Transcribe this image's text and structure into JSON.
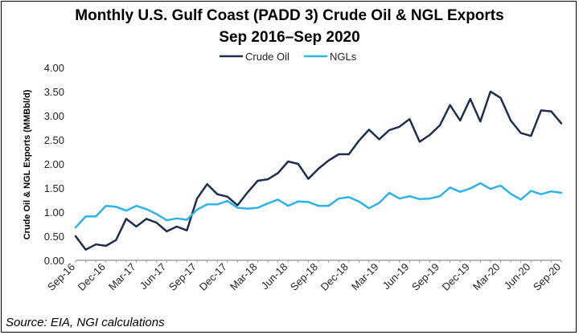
{
  "chart_data": {
    "type": "line",
    "title": "Monthly U.S. Gulf Coast (PADD 3) Crude Oil & NGL Exports",
    "subtitle": "Sep 2016–Sep 2020",
    "ylabel": "Crude Oil & NGL Exports (MMBbl/d)",
    "xlabel": "",
    "ylim": [
      0,
      4
    ],
    "yticks": [
      "0.00",
      "0.50",
      "1.00",
      "1.50",
      "2.00",
      "2.50",
      "3.00",
      "3.50",
      "4.00"
    ],
    "legend": {
      "position": "top-center",
      "entries": [
        "Crude Oil",
        "NGLs"
      ]
    },
    "x_tick_labels": [
      "Sep-16",
      "Dec-16",
      "Mar-17",
      "Jun-17",
      "Sep-17",
      "Dec-17",
      "Mar-18",
      "Jun-18",
      "Sep-18",
      "Dec-18",
      "Mar-19",
      "Jun-19",
      "Sep-19",
      "Dec-19",
      "Mar-20",
      "Jun-20",
      "Sep-20"
    ],
    "x_tick_every": 3,
    "num_points": 49,
    "series": [
      {
        "name": "Crude Oil",
        "color": "#1f2d4e",
        "values": [
          0.5,
          0.22,
          0.33,
          0.3,
          0.42,
          0.86,
          0.7,
          0.86,
          0.78,
          0.6,
          0.7,
          0.62,
          1.28,
          1.58,
          1.37,
          1.32,
          1.14,
          1.41,
          1.65,
          1.68,
          1.81,
          2.05,
          2.0,
          1.69,
          1.9,
          2.07,
          2.2,
          2.2,
          2.48,
          2.71,
          2.51,
          2.7,
          2.77,
          2.93,
          2.46,
          2.6,
          2.8,
          3.22,
          2.9,
          3.35,
          2.88,
          3.5,
          3.37,
          2.9,
          2.64,
          2.58,
          3.11,
          3.09,
          2.84
        ]
      },
      {
        "name": "NGLs",
        "color": "#2eb3e8",
        "values": [
          0.68,
          0.91,
          0.91,
          1.13,
          1.11,
          1.03,
          1.13,
          1.06,
          0.96,
          0.83,
          0.87,
          0.84,
          1.05,
          1.16,
          1.16,
          1.23,
          1.09,
          1.07,
          1.09,
          1.18,
          1.26,
          1.13,
          1.22,
          1.21,
          1.13,
          1.13,
          1.28,
          1.31,
          1.22,
          1.08,
          1.19,
          1.4,
          1.28,
          1.33,
          1.27,
          1.28,
          1.33,
          1.51,
          1.42,
          1.49,
          1.6,
          1.48,
          1.55,
          1.38,
          1.26,
          1.44,
          1.37,
          1.43,
          1.4
        ]
      }
    ]
  },
  "source": "Source: EIA, NGI calculations"
}
